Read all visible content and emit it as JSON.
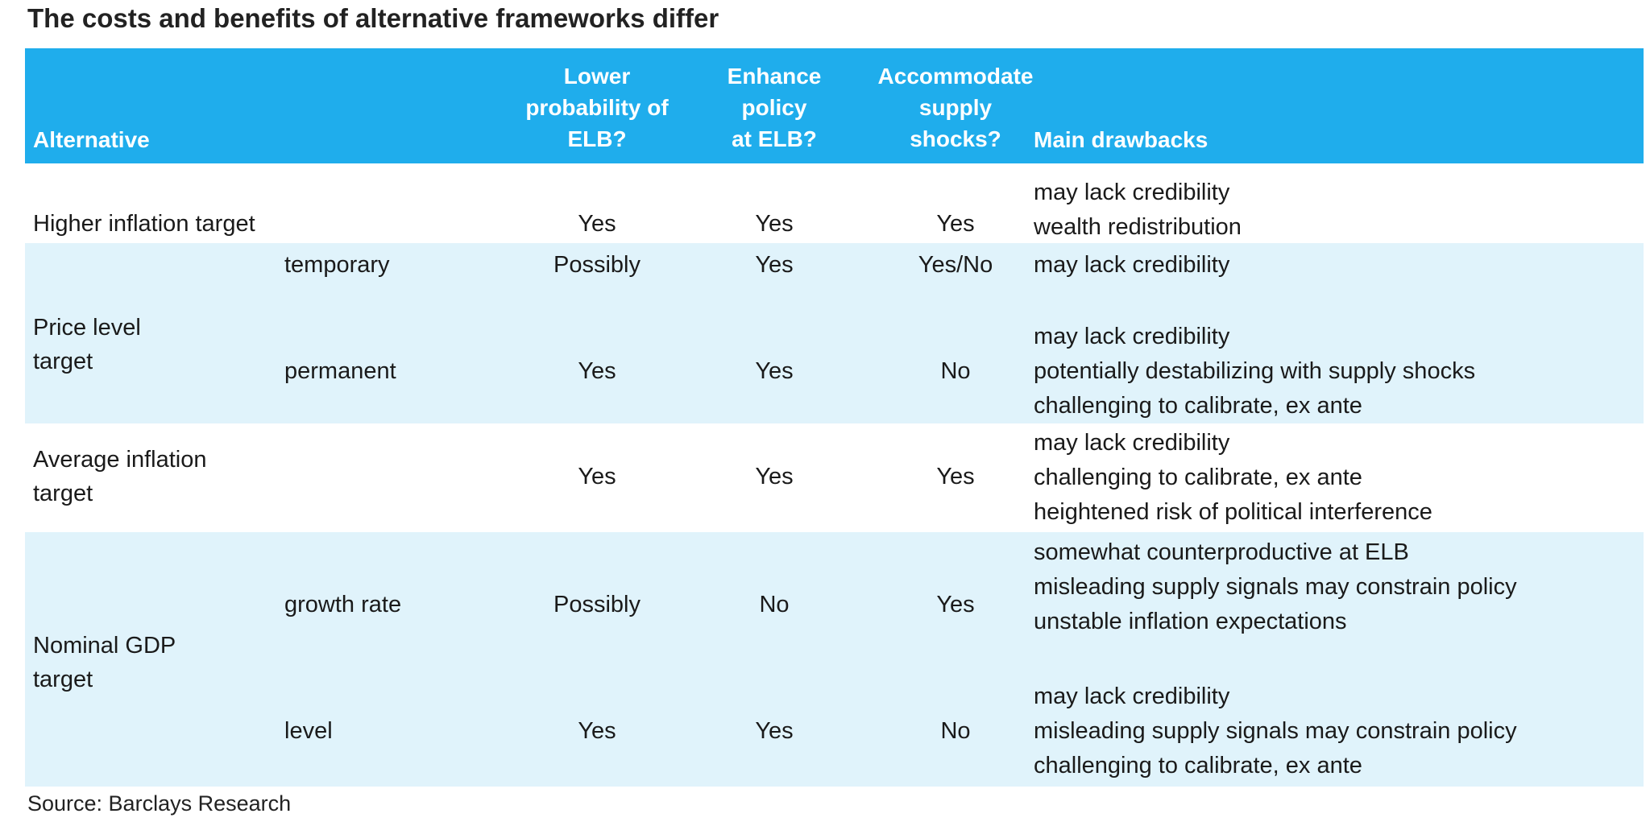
{
  "title": "The costs and benefits of alternative frameworks differ",
  "headers": {
    "alternative": "Alternative",
    "lower_elb": [
      "Lower",
      "probability of",
      "ELB?"
    ],
    "enhance_policy": [
      "Enhance",
      "policy",
      "at ELB?"
    ],
    "accommodate": [
      "Accommodate",
      "supply",
      "shocks?"
    ],
    "drawbacks": "Main drawbacks"
  },
  "rows": {
    "higher_inflation": {
      "name": "Higher inflation target",
      "lower": "Yes",
      "enhance": "Yes",
      "accommodate": "Yes",
      "drawbacks": [
        "may lack credibility",
        "wealth redistribution"
      ]
    },
    "price_level": {
      "name": [
        "Price level",
        "target"
      ],
      "temporary": {
        "sub": "temporary",
        "lower": "Possibly",
        "enhance": "Yes",
        "accommodate": "Yes/No",
        "drawbacks": [
          "may lack credibility"
        ]
      },
      "permanent": {
        "sub": "permanent",
        "lower": "Yes",
        "enhance": "Yes",
        "accommodate": "No",
        "drawbacks": [
          "may lack credibility",
          "potentially destabilizing with supply shocks",
          "challenging to calibrate, ex ante"
        ]
      }
    },
    "average_inflation": {
      "name": [
        "Average inflation",
        "target"
      ],
      "lower": "Yes",
      "enhance": "Yes",
      "accommodate": "Yes",
      "drawbacks": [
        "may lack credibility",
        "challenging to calibrate, ex ante",
        "heightened risk of political interference"
      ]
    },
    "nominal_gdp": {
      "name": [
        "Nominal GDP",
        "target"
      ],
      "growth": {
        "sub": "growth rate",
        "lower": "Possibly",
        "enhance": "No",
        "accommodate": "Yes",
        "drawbacks": [
          "somewhat counterproductive at ELB",
          "misleading supply signals may constrain policy",
          "unstable inflation expectations"
        ]
      },
      "level": {
        "sub": "level",
        "lower": "Yes",
        "enhance": "Yes",
        "accommodate": "No",
        "drawbacks": [
          "may lack credibility",
          "misleading supply signals may constrain policy",
          "challenging to calibrate, ex ante"
        ]
      }
    }
  },
  "source": "Source: Barclays Research"
}
